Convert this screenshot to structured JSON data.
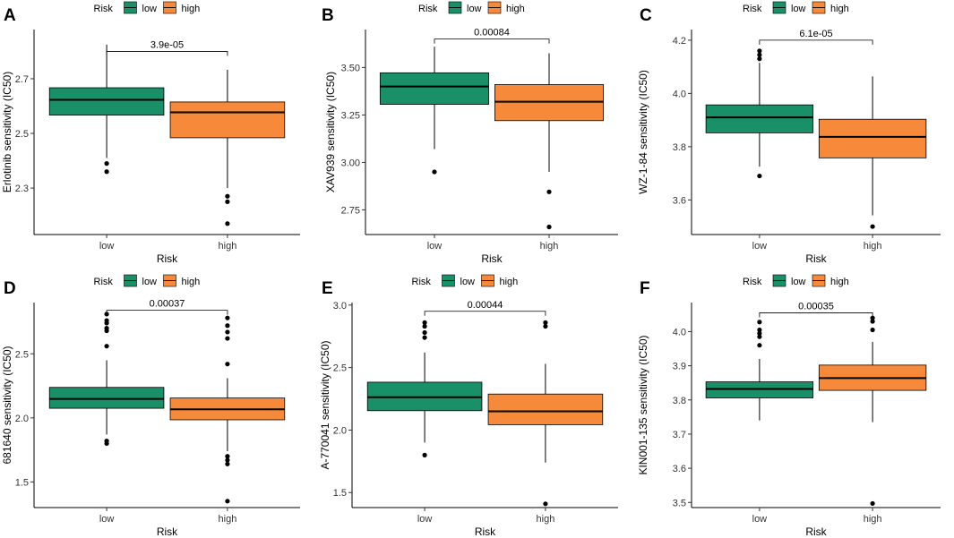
{
  "legend": {
    "title": "Risk",
    "labels": [
      "low",
      "high"
    ]
  },
  "colors": {
    "low": "#1a9068",
    "high": "#f6893a",
    "axis": "#000000"
  },
  "chart_data": [
    {
      "type": "box",
      "letter": "A",
      "categories": [
        "low",
        "high"
      ],
      "xlabel": "Risk",
      "ylabel": "Erlotinib sensitivity (IC50)",
      "ylim": [
        2.13,
        2.88
      ],
      "ticks": [
        2.3,
        2.5,
        2.7
      ],
      "tick_labels": [
        "2.3",
        "2.5",
        "2.7"
      ],
      "pvalue": "3.9e-05",
      "bracket_y": 2.8,
      "boxes": [
        {
          "min": 2.41,
          "q1": 2.567,
          "median": 2.623,
          "q3": 2.667,
          "max": 2.825,
          "outliers": [
            2.39,
            2.36
          ]
        },
        {
          "min": 2.3,
          "q1": 2.484,
          "median": 2.577,
          "q3": 2.615,
          "max": 2.733,
          "outliers": [
            2.27,
            2.25,
            2.17
          ]
        }
      ]
    },
    {
      "type": "box",
      "letter": "B",
      "categories": [
        "low",
        "high"
      ],
      "xlabel": "Risk",
      "ylabel": "XAV939 sensitivity (IC50)",
      "ylim": [
        2.62,
        3.7
      ],
      "ticks": [
        2.75,
        3.0,
        3.25,
        3.5
      ],
      "tick_labels": [
        "2.75",
        "3.00",
        "3.25",
        "3.50"
      ],
      "pvalue": "0.00084",
      "bracket_y": 3.65,
      "boxes": [
        {
          "min": 3.07,
          "q1": 3.306,
          "median": 3.4,
          "q3": 3.472,
          "max": 3.61,
          "outliers": [
            2.95
          ]
        },
        {
          "min": 2.95,
          "q1": 3.22,
          "median": 3.32,
          "q3": 3.41,
          "max": 3.575,
          "outliers": [
            2.845,
            2.66
          ]
        }
      ]
    },
    {
      "type": "box",
      "letter": "C",
      "categories": [
        "low",
        "high"
      ],
      "xlabel": "Risk",
      "ylabel": "WZ-1-84 sensitivity (IC50)",
      "ylim": [
        3.47,
        4.24
      ],
      "ticks": [
        3.6,
        3.8,
        4.0,
        4.2
      ],
      "tick_labels": [
        "3.6",
        "3.8",
        "4.0",
        "4.2"
      ],
      "pvalue": "6.1e-05",
      "bracket_y": 4.2,
      "boxes": [
        {
          "min": 3.725,
          "q1": 3.852,
          "median": 3.91,
          "q3": 3.957,
          "max": 4.115,
          "outliers": [
            3.69,
            4.13,
            4.145,
            4.16
          ]
        },
        {
          "min": 3.542,
          "q1": 3.758,
          "median": 3.837,
          "q3": 3.903,
          "max": 4.064,
          "outliers": [
            3.5
          ]
        }
      ]
    },
    {
      "type": "box",
      "letter": "D",
      "categories": [
        "low",
        "high"
      ],
      "xlabel": "Risk",
      "ylabel": "681640 sensitivity (IC50)",
      "ylim": [
        1.3,
        2.9
      ],
      "ticks": [
        1.5,
        2.0,
        2.5
      ],
      "tick_labels": [
        "1.5",
        "2.0",
        "2.5"
      ],
      "pvalue": "0.00037",
      "bracket_y": 2.84,
      "boxes": [
        {
          "min": 1.87,
          "q1": 2.075,
          "median": 2.148,
          "q3": 2.238,
          "max": 2.45,
          "outliers": [
            1.82,
            1.8,
            2.56,
            2.68,
            2.7,
            2.74,
            2.76,
            2.81
          ]
        },
        {
          "min": 1.74,
          "q1": 1.985,
          "median": 2.067,
          "q3": 2.155,
          "max": 2.31,
          "outliers": [
            1.7,
            1.67,
            1.64,
            1.35,
            2.42,
            2.62,
            2.67,
            2.72,
            2.78
          ]
        }
      ]
    },
    {
      "type": "box",
      "letter": "E",
      "categories": [
        "low",
        "high"
      ],
      "xlabel": "Risk",
      "ylabel": "A-770041 sensitivity (IC50)",
      "ylim": [
        1.38,
        3.02
      ],
      "ticks": [
        1.5,
        2.0,
        2.5,
        3.0
      ],
      "tick_labels": [
        "1.5",
        "2.0",
        "2.5",
        "3.0"
      ],
      "pvalue": "0.00044",
      "bracket_y": 2.95,
      "boxes": [
        {
          "min": 1.9,
          "q1": 2.155,
          "median": 2.263,
          "q3": 2.383,
          "max": 2.62,
          "outliers": [
            1.8,
            2.74,
            2.78,
            2.83,
            2.86
          ]
        },
        {
          "min": 1.74,
          "q1": 2.043,
          "median": 2.15,
          "q3": 2.288,
          "max": 2.53,
          "outliers": [
            1.41,
            2.83,
            2.86
          ]
        }
      ]
    },
    {
      "type": "box",
      "letter": "F",
      "categories": [
        "low",
        "high"
      ],
      "xlabel": "Risk",
      "ylabel": "KIN001-135 sensitivity (IC50)",
      "ylim": [
        3.485,
        4.085
      ],
      "ticks": [
        3.5,
        3.6,
        3.7,
        3.8,
        3.9,
        4.0
      ],
      "tick_labels": [
        "3.5",
        "3.6",
        "3.7",
        "3.8",
        "3.9",
        "4.0"
      ],
      "pvalue": "0.00035",
      "bracket_y": 4.055,
      "boxes": [
        {
          "min": 3.74,
          "q1": 3.806,
          "median": 3.832,
          "q3": 3.853,
          "max": 3.92,
          "outliers": [
            3.96,
            3.985,
            3.995,
            4.005,
            4.028
          ]
        },
        {
          "min": 3.735,
          "q1": 3.828,
          "median": 3.864,
          "q3": 3.902,
          "max": 3.97,
          "outliers": [
            3.497,
            4.005,
            4.03,
            4.04
          ]
        }
      ]
    }
  ]
}
